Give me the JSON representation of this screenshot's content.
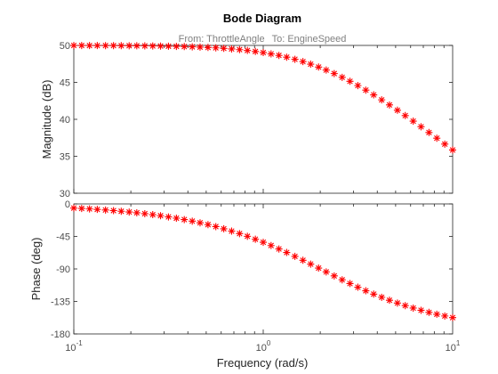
{
  "chart_data": {
    "type": "scatter",
    "title": "Bode Diagram",
    "subtitle": {
      "from_label": "From: ThrottleAngle",
      "to_label": "To: EngineSpeed"
    },
    "xlabel": "Frequency  (rad/s)",
    "xscale": "log",
    "xlim": [
      0.1,
      10
    ],
    "x_ticks": [
      {
        "value": 0.1,
        "base": "10",
        "exp": "-1"
      },
      {
        "value": 1,
        "base": "10",
        "exp": "0"
      },
      {
        "value": 10,
        "base": "10",
        "exp": "1"
      }
    ],
    "marker": "*",
    "marker_color": "#ff0000",
    "grid": false,
    "panels": [
      {
        "id": "magnitude",
        "ylabel": "Magnitude (dB)",
        "ylim": [
          30,
          50
        ],
        "y_ticks": [
          {
            "value": 30,
            "label": "30"
          },
          {
            "value": 35,
            "label": "35"
          },
          {
            "value": 40,
            "label": "40"
          },
          {
            "value": 45,
            "label": "45"
          },
          {
            "value": 50,
            "label": "50"
          }
        ],
        "model": {
          "kind": "first_order_magnitude",
          "gain_db": 50,
          "corner": 2.0
        }
      },
      {
        "id": "phase",
        "ylabel": "Phase (deg)",
        "ylim": [
          -180,
          0
        ],
        "y_ticks": [
          {
            "value": -180,
            "label": "-180"
          },
          {
            "value": -135,
            "label": "-135"
          },
          {
            "value": -90,
            "label": "-90"
          },
          {
            "value": -45,
            "label": "-45"
          },
          {
            "value": 0,
            "label": "0"
          }
        ],
        "model": {
          "kind": "second_order_phase",
          "corner": 2.0
        }
      }
    ],
    "frequencies": [
      0.1,
      0.11,
      0.121,
      0.133,
      0.147,
      0.162,
      0.178,
      0.196,
      0.215,
      0.237,
      0.261,
      0.287,
      0.316,
      0.348,
      0.383,
      0.422,
      0.464,
      0.511,
      0.562,
      0.619,
      0.681,
      0.75,
      0.825,
      0.909,
      1.0,
      1.1,
      1.21,
      1.33,
      1.47,
      1.62,
      1.78,
      1.96,
      2.15,
      2.37,
      2.61,
      2.87,
      3.16,
      3.48,
      3.83,
      4.22,
      4.64,
      5.11,
      5.62,
      6.19,
      6.81,
      7.5,
      8.25,
      9.09,
      10.0
    ]
  }
}
